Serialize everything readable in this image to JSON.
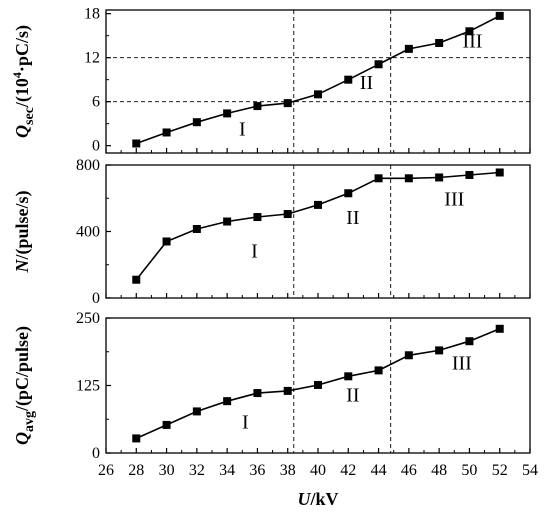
{
  "chart_data": [
    {
      "type": "line",
      "ylabel": "Q_sec/(10^4·pC/s)",
      "ylabel_parts": {
        "main": "Q",
        "sub": "sec",
        "rest": "/(10",
        "sup": "4",
        "tail": "·pC/s)"
      },
      "ylim": [
        -1,
        18.5
      ],
      "yticks": [
        0,
        6,
        12,
        18
      ],
      "ytick_labels": [
        "0",
        "6",
        "12",
        "18"
      ],
      "hlines": [
        6,
        12
      ],
      "x": [
        28,
        30,
        32,
        34,
        36,
        38,
        40,
        42,
        44,
        46,
        48,
        50,
        52
      ],
      "values": [
        0.3,
        1.8,
        3.2,
        4.4,
        5.4,
        5.8,
        7.0,
        9.0,
        11.1,
        13.2,
        14.0,
        15.6,
        17.7
      ],
      "region_labels": [
        {
          "text": "I",
          "x": 35,
          "y": 1.4
        },
        {
          "text": "II",
          "x": 43.2,
          "y": 7.7
        },
        {
          "text": "III",
          "x": 50.2,
          "y": 13.4
        }
      ]
    },
    {
      "type": "line",
      "ylabel": "N/(pulse/s)",
      "ylabel_parts": {
        "main": "N",
        "rest": "/(pulse/s)"
      },
      "ylim": [
        0,
        800
      ],
      "yticks": [
        0,
        400,
        800
      ],
      "ytick_labels": [
        "0",
        "400",
        "800"
      ],
      "x": [
        28,
        30,
        32,
        34,
        36,
        38,
        40,
        42,
        44,
        46,
        48,
        50,
        52
      ],
      "values": [
        110,
        340,
        415,
        460,
        487,
        505,
        560,
        630,
        720,
        720,
        725,
        740,
        755
      ],
      "region_labels": [
        {
          "text": "I",
          "x": 35.8,
          "y": 245
        },
        {
          "text": "II",
          "x": 42.3,
          "y": 445
        },
        {
          "text": "III",
          "x": 49,
          "y": 555
        }
      ]
    },
    {
      "type": "line",
      "ylabel": "Q_avg/(pC/pulse)",
      "ylabel_parts": {
        "main": "Q",
        "sub": "avg",
        "rest": "/(pC/pulse)"
      },
      "ylim": [
        0,
        250
      ],
      "yticks": [
        0,
        125,
        250
      ],
      "ytick_labels": [
        "0",
        "125",
        "250"
      ],
      "x": [
        28,
        30,
        32,
        34,
        36,
        38,
        40,
        42,
        44,
        46,
        48,
        50,
        52
      ],
      "values": [
        27,
        52,
        77,
        96,
        111,
        115,
        126,
        142,
        153,
        181,
        190,
        207,
        230
      ],
      "region_labels": [
        {
          "text": "I",
          "x": 35.2,
          "y": 45
        },
        {
          "text": "II",
          "x": 42.3,
          "y": 95
        },
        {
          "text": "III",
          "x": 49.5,
          "y": 155
        }
      ]
    }
  ],
  "shared": {
    "xlabel": "U/kV",
    "xlabel_parts": {
      "main": "U",
      "rest": "/kV"
    },
    "xlim": [
      26,
      54
    ],
    "xticks": [
      26,
      28,
      30,
      32,
      34,
      36,
      38,
      40,
      42,
      44,
      46,
      48,
      50,
      52,
      54
    ],
    "xtick_labels": [
      "26",
      "28",
      "30",
      "32",
      "34",
      "36",
      "38",
      "40",
      "42",
      "44",
      "46",
      "48",
      "50",
      "52",
      "54"
    ],
    "vlines": [
      38.4,
      44.8
    ]
  }
}
